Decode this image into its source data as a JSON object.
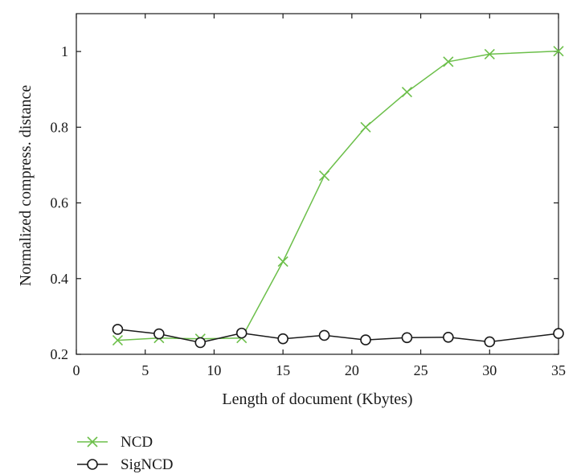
{
  "chart_data": {
    "type": "line",
    "xlabel": "Length of document (Kbytes)",
    "ylabel": "Normalized compress. distance",
    "xlim": [
      0,
      35
    ],
    "ylim": [
      0.2,
      1.1
    ],
    "xticks": [
      0,
      5,
      10,
      15,
      20,
      25,
      30,
      35
    ],
    "yticks": [
      0.2,
      0.4,
      0.6,
      0.8,
      1.0
    ],
    "xtick_labels": [
      "0",
      "5",
      "10",
      "15",
      "20",
      "25",
      "30",
      "35"
    ],
    "ytick_labels": [
      "0.2",
      "0.4",
      "0.6",
      "0.8",
      "1"
    ],
    "grid": false,
    "legend_position": "bottom-left, below plot",
    "x": [
      3,
      6,
      9,
      12,
      15,
      18,
      21,
      24,
      27,
      30,
      35
    ],
    "series": [
      {
        "name": "NCD",
        "color": "#6cbf4a",
        "marker": "x",
        "values": [
          0.237,
          0.243,
          0.241,
          0.243,
          0.445,
          0.672,
          0.8,
          0.893,
          0.973,
          0.993,
          1.001
        ]
      },
      {
        "name": "SigNCD",
        "color": "#1a1a1a",
        "marker": "circle",
        "values": [
          0.266,
          0.254,
          0.231,
          0.256,
          0.241,
          0.25,
          0.238,
          0.244,
          0.245,
          0.233,
          0.255
        ]
      }
    ]
  }
}
